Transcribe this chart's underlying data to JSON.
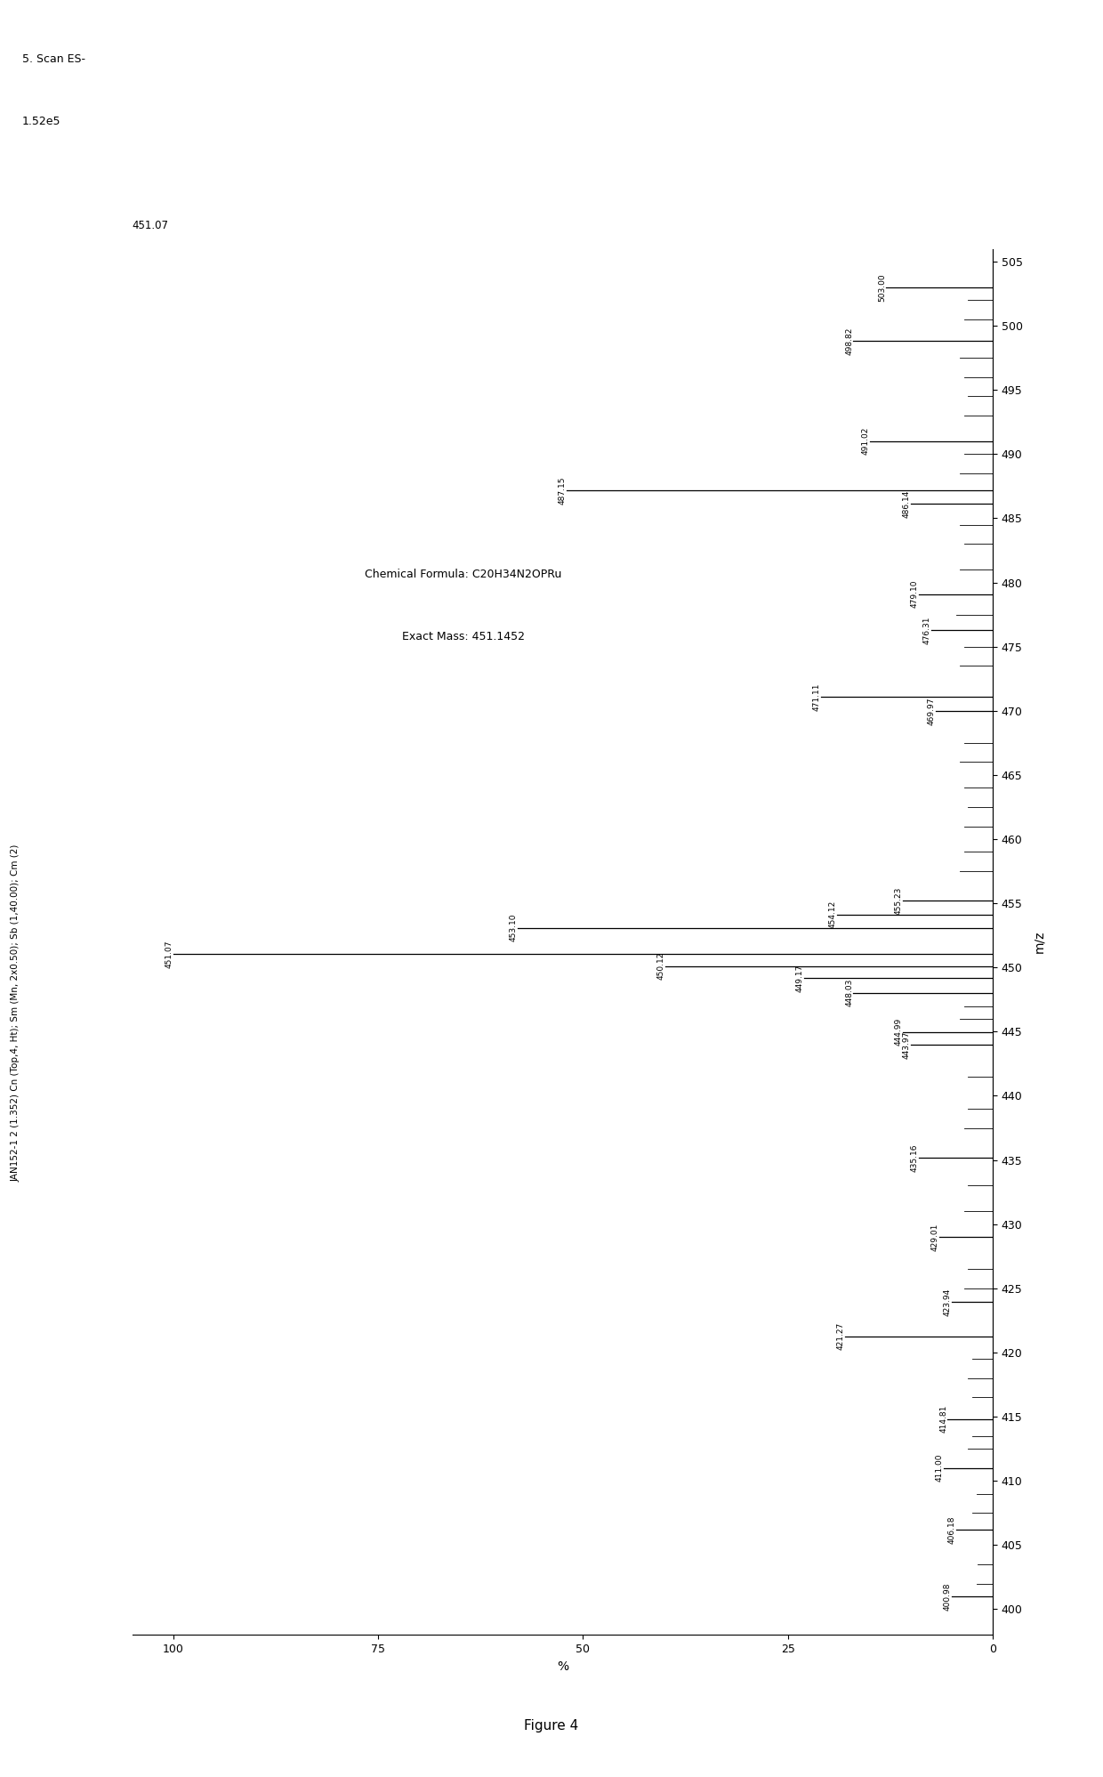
{
  "title_left": "JAN152-1 2 (1.352) Cn (Top,4, Ht); Sm (Mn, 2x0.50); Sb (1,40.00); Cm (2)",
  "title_right_line1": "5. Scan ES-",
  "title_right_line2": "1.52e5",
  "base_peak_label": "451.07",
  "xlabel": "m/z",
  "ylabel": "%",
  "xlim": [
    0,
    105
  ],
  "ylim": [
    398,
    506
  ],
  "yticks": [
    400,
    405,
    410,
    415,
    420,
    425,
    430,
    435,
    440,
    445,
    450,
    455,
    460,
    465,
    470,
    475,
    480,
    485,
    490,
    495,
    500,
    505
  ],
  "xticks": [
    0,
    25,
    50,
    75,
    100
  ],
  "chemical_formula_line1": "Chemical Formula: C",
  "chemical_formula_sub1": "20",
  "chemical_formula_line2": "H",
  "chemical_formula_sub2": "34",
  "chemical_formula_line3": "N",
  "chemical_formula_sub3": "2",
  "chemical_formula_end": "OPRu",
  "chemical_formula": "Chemical Formula: C20H34N2OPRu",
  "exact_mass": "Exact Mass: 451.1452",
  "figure_caption": "Figure 4",
  "background_color": "#ffffff",
  "peaks": [
    {
      "mz": 400.98,
      "intensity": 5.0,
      "label": "400.98"
    },
    {
      "mz": 406.18,
      "intensity": 4.5,
      "label": "406.18"
    },
    {
      "mz": 411.0,
      "intensity": 6.0,
      "label": "411.00"
    },
    {
      "mz": 414.81,
      "intensity": 5.5,
      "label": "414.81"
    },
    {
      "mz": 421.27,
      "intensity": 18.0,
      "label": "421.27"
    },
    {
      "mz": 423.94,
      "intensity": 5.0,
      "label": "423.94"
    },
    {
      "mz": 429.01,
      "intensity": 6.5,
      "label": "429.01"
    },
    {
      "mz": 435.16,
      "intensity": 9.0,
      "label": "435.16"
    },
    {
      "mz": 443.97,
      "intensity": 10.0,
      "label": "443.97"
    },
    {
      "mz": 444.99,
      "intensity": 11.0,
      "label": "444.99"
    },
    {
      "mz": 448.03,
      "intensity": 17.0,
      "label": "448.03"
    },
    {
      "mz": 449.17,
      "intensity": 23.0,
      "label": "449.17"
    },
    {
      "mz": 450.12,
      "intensity": 40.0,
      "label": "450.12"
    },
    {
      "mz": 451.07,
      "intensity": 100.0,
      "label": "451.07"
    },
    {
      "mz": 453.1,
      "intensity": 58.0,
      "label": "453.10"
    },
    {
      "mz": 454.12,
      "intensity": 19.0,
      "label": "454.12"
    },
    {
      "mz": 455.23,
      "intensity": 11.0,
      "label": "455.23"
    },
    {
      "mz": 469.97,
      "intensity": 7.0,
      "label": "469.97"
    },
    {
      "mz": 471.11,
      "intensity": 21.0,
      "label": "471.11"
    },
    {
      "mz": 476.31,
      "intensity": 7.5,
      "label": "476.31"
    },
    {
      "mz": 479.1,
      "intensity": 9.0,
      "label": "479.10"
    },
    {
      "mz": 486.14,
      "intensity": 10.0,
      "label": "486.14"
    },
    {
      "mz": 487.15,
      "intensity": 52.0,
      "label": "487.15"
    },
    {
      "mz": 491.02,
      "intensity": 15.0,
      "label": "491.02"
    },
    {
      "mz": 498.82,
      "intensity": 17.0,
      "label": "498.82"
    },
    {
      "mz": 503.0,
      "intensity": 13.0,
      "label": "503.00"
    }
  ],
  "small_peaks": [
    {
      "mz": 402.0,
      "intensity": 2.0
    },
    {
      "mz": 403.5,
      "intensity": 1.8
    },
    {
      "mz": 407.5,
      "intensity": 2.5
    },
    {
      "mz": 409.0,
      "intensity": 2.0
    },
    {
      "mz": 412.5,
      "intensity": 3.0
    },
    {
      "mz": 413.5,
      "intensity": 2.5
    },
    {
      "mz": 416.5,
      "intensity": 2.5
    },
    {
      "mz": 418.0,
      "intensity": 3.0
    },
    {
      "mz": 419.5,
      "intensity": 2.5
    },
    {
      "mz": 425.0,
      "intensity": 3.5
    },
    {
      "mz": 426.5,
      "intensity": 3.0
    },
    {
      "mz": 431.0,
      "intensity": 3.5
    },
    {
      "mz": 433.0,
      "intensity": 3.0
    },
    {
      "mz": 437.5,
      "intensity": 3.5
    },
    {
      "mz": 439.0,
      "intensity": 3.0
    },
    {
      "mz": 441.5,
      "intensity": 3.0
    },
    {
      "mz": 446.0,
      "intensity": 4.0
    },
    {
      "mz": 447.0,
      "intensity": 3.5
    },
    {
      "mz": 457.5,
      "intensity": 4.0
    },
    {
      "mz": 459.0,
      "intensity": 3.5
    },
    {
      "mz": 461.0,
      "intensity": 3.5
    },
    {
      "mz": 462.5,
      "intensity": 3.0
    },
    {
      "mz": 464.0,
      "intensity": 3.5
    },
    {
      "mz": 466.0,
      "intensity": 4.0
    },
    {
      "mz": 467.5,
      "intensity": 3.5
    },
    {
      "mz": 473.5,
      "intensity": 4.0
    },
    {
      "mz": 475.0,
      "intensity": 3.5
    },
    {
      "mz": 477.5,
      "intensity": 4.5
    },
    {
      "mz": 481.0,
      "intensity": 4.0
    },
    {
      "mz": 483.0,
      "intensity": 3.5
    },
    {
      "mz": 484.5,
      "intensity": 4.0
    },
    {
      "mz": 488.5,
      "intensity": 4.0
    },
    {
      "mz": 490.0,
      "intensity": 3.5
    },
    {
      "mz": 493.0,
      "intensity": 3.5
    },
    {
      "mz": 494.5,
      "intensity": 3.0
    },
    {
      "mz": 496.0,
      "intensity": 3.5
    },
    {
      "mz": 497.5,
      "intensity": 4.0
    },
    {
      "mz": 500.5,
      "intensity": 3.5
    },
    {
      "mz": 502.0,
      "intensity": 3.0
    }
  ]
}
